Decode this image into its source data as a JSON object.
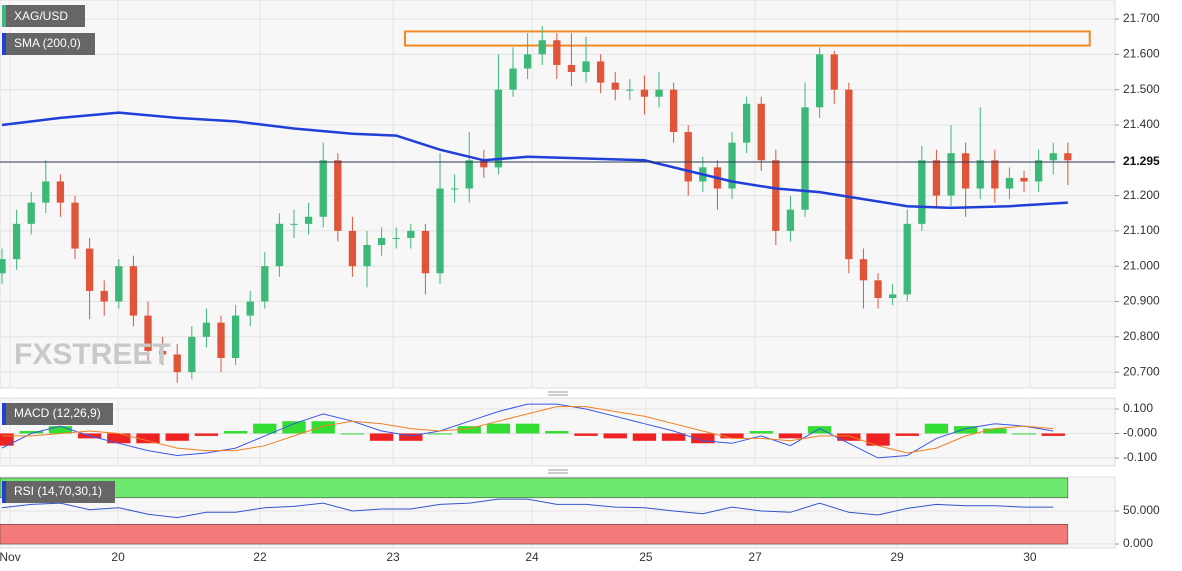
{
  "chart_data": {
    "type": "candlestick",
    "instrument": "XAG/USD",
    "x": [
      0,
      1,
      2,
      3,
      4,
      5,
      6,
      7,
      8,
      9,
      10,
      11,
      12,
      13,
      14,
      15,
      16,
      17,
      18,
      19,
      20,
      21,
      22,
      23,
      24,
      25,
      26,
      27,
      28,
      29,
      30,
      31,
      32,
      33,
      34,
      35,
      36,
      37,
      38,
      39,
      40,
      41,
      42,
      43,
      44,
      45,
      46,
      47,
      48,
      49,
      50,
      51,
      52,
      53,
      54,
      55,
      56,
      57,
      58,
      59,
      60,
      61,
      62,
      63,
      64,
      65,
      66,
      67,
      68,
      69,
      70,
      71,
      72,
      73
    ],
    "open": [
      20.98,
      21.02,
      21.12,
      21.18,
      21.24,
      21.18,
      21.05,
      20.93,
      20.9,
      21.0,
      20.86,
      20.76,
      20.75,
      20.7,
      20.8,
      20.84,
      20.74,
      20.86,
      20.9,
      21.0,
      21.12,
      21.12,
      21.14,
      21.3,
      21.1,
      21.0,
      21.06,
      21.08,
      21.08,
      21.1,
      20.98,
      21.22,
      21.22,
      21.3,
      21.28,
      21.5,
      21.56,
      21.6,
      21.64,
      21.57,
      21.55,
      21.58,
      21.52,
      21.5,
      21.5,
      21.48,
      21.5,
      21.38,
      21.24,
      21.28,
      21.22,
      21.35,
      21.46,
      21.3,
      21.1,
      21.16,
      21.45,
      21.6,
      21.5,
      21.02,
      20.96,
      20.91,
      20.92,
      21.12,
      21.3,
      21.2,
      21.32,
      21.22,
      21.3,
      21.22,
      21.25,
      21.24,
      21.3,
      21.32
    ],
    "high": [
      21.05,
      21.16,
      21.21,
      21.3,
      21.26,
      21.2,
      21.08,
      20.96,
      21.02,
      21.03,
      20.9,
      20.8,
      20.78,
      20.83,
      20.88,
      20.86,
      20.89,
      20.93,
      21.04,
      21.15,
      21.16,
      21.18,
      21.35,
      21.32,
      21.14,
      21.1,
      21.11,
      21.11,
      21.12,
      21.12,
      21.32,
      21.26,
      21.38,
      21.33,
      21.6,
      21.62,
      21.66,
      21.68,
      21.66,
      21.66,
      21.65,
      21.6,
      21.55,
      21.53,
      21.54,
      21.55,
      21.52,
      21.4,
      21.31,
      21.3,
      21.38,
      21.48,
      21.48,
      21.33,
      21.2,
      21.52,
      21.62,
      21.61,
      21.52,
      21.05,
      20.98,
      20.95,
      21.16,
      21.34,
      21.33,
      21.4,
      21.35,
      21.45,
      21.33,
      21.28,
      21.27,
      21.33,
      21.35,
      21.35
    ],
    "low": [
      20.95,
      20.99,
      21.09,
      21.15,
      21.14,
      21.02,
      20.85,
      20.86,
      20.88,
      20.83,
      20.73,
      20.72,
      20.67,
      20.68,
      20.77,
      20.7,
      20.72,
      20.83,
      20.88,
      20.97,
      21.08,
      21.09,
      21.11,
      21.07,
      20.97,
      20.94,
      21.03,
      21.05,
      21.05,
      20.92,
      20.95,
      21.18,
      21.18,
      21.25,
      21.26,
      21.48,
      21.53,
      21.57,
      21.53,
      21.51,
      21.52,
      21.49,
      21.47,
      21.47,
      21.43,
      21.45,
      21.35,
      21.2,
      21.21,
      21.16,
      21.19,
      21.32,
      21.27,
      21.06,
      21.07,
      21.14,
      21.42,
      21.46,
      20.98,
      20.88,
      20.88,
      20.89,
      20.9,
      21.1,
      21.17,
      21.17,
      21.14,
      21.19,
      21.18,
      21.19,
      21.21,
      21.21,
      21.26,
      21.23
    ],
    "close": [
      21.02,
      21.12,
      21.18,
      21.24,
      21.18,
      21.05,
      20.93,
      20.9,
      21.0,
      20.86,
      20.76,
      20.75,
      20.7,
      20.8,
      20.84,
      20.74,
      20.86,
      20.9,
      21.0,
      21.12,
      21.12,
      21.14,
      21.3,
      21.1,
      21.0,
      21.06,
      21.08,
      21.08,
      21.1,
      20.98,
      21.22,
      21.22,
      21.3,
      21.28,
      21.5,
      21.56,
      21.6,
      21.64,
      21.57,
      21.55,
      21.58,
      21.52,
      21.5,
      21.5,
      21.48,
      21.5,
      21.38,
      21.24,
      21.28,
      21.22,
      21.35,
      21.46,
      21.3,
      21.1,
      21.16,
      21.45,
      21.6,
      21.5,
      21.02,
      20.96,
      20.91,
      20.92,
      21.12,
      21.3,
      21.2,
      21.32,
      21.22,
      21.3,
      21.22,
      21.25,
      21.24,
      21.3,
      21.32,
      21.3
    ],
    "up_color": "#3cb878",
    "down_color": "#e0553a",
    "xlim": [
      -0.137,
      76.23
    ],
    "xticks": [
      {
        "value": 0.55,
        "label": "Nov"
      },
      {
        "value": 7.95,
        "label": "20"
      },
      {
        "value": 17.67,
        "label": "22"
      },
      {
        "value": 26.78,
        "label": "23"
      },
      {
        "value": 36.3,
        "label": "24"
      },
      {
        "value": 44.1,
        "label": "25"
      },
      {
        "value": 51.58,
        "label": "27"
      },
      {
        "value": 61.3,
        "label": "29"
      },
      {
        "value": 70.4,
        "label": "30"
      }
    ],
    "ylim": [
      20.655,
      21.754
    ],
    "yticks": [
      {
        "value": 21.7,
        "label": "21.700"
      },
      {
        "value": 21.6,
        "label": "21.600"
      },
      {
        "value": 21.5,
        "label": "21.500"
      },
      {
        "value": 21.4,
        "label": "21.400"
      },
      {
        "value": 21.2,
        "label": "21.200"
      },
      {
        "value": 21.1,
        "label": "21.100"
      },
      {
        "value": 21.0,
        "label": "21.000"
      },
      {
        "value": 20.9,
        "label": "20.900"
      },
      {
        "value": 20.8,
        "label": "20.800"
      },
      {
        "value": 20.7,
        "label": "20.700"
      }
    ],
    "grid": true,
    "last_price": 21.295,
    "sma": {
      "label": "SMA (200,0)",
      "color": "#1f3fd8",
      "x": [
        0,
        4,
        8,
        12,
        16,
        20,
        24,
        27,
        30,
        33,
        36,
        40,
        44,
        47,
        50,
        53,
        56,
        59,
        62,
        65,
        69,
        73
      ],
      "values": [
        21.4,
        21.42,
        21.435,
        21.42,
        21.41,
        21.39,
        21.375,
        21.37,
        21.33,
        21.3,
        21.31,
        21.305,
        21.3,
        21.27,
        21.24,
        21.22,
        21.21,
        21.19,
        21.17,
        21.165,
        21.17,
        21.18
      ]
    },
    "zone": {
      "color": "#f08a24",
      "x": [
        27.6,
        74.5
      ],
      "y": [
        21.625,
        21.665
      ]
    },
    "watermark": "FXSTREET",
    "macd": {
      "label": "MACD (12,26,9)",
      "x": [
        0,
        2,
        4,
        6,
        8,
        10,
        12,
        14,
        16,
        18,
        20,
        22,
        24,
        26,
        28,
        30,
        32,
        34,
        36,
        38,
        40,
        42,
        44,
        46,
        48,
        50,
        52,
        54,
        56,
        58,
        60,
        62,
        64,
        66,
        68,
        70,
        72
      ],
      "macd": {
        "color": "#3a57e8",
        "values": [
          -0.06,
          0.0,
          0.03,
          -0.01,
          -0.04,
          -0.07,
          -0.09,
          -0.08,
          -0.06,
          -0.01,
          0.04,
          0.08,
          0.05,
          0.01,
          -0.01,
          0.01,
          0.05,
          0.09,
          0.12,
          0.12,
          0.1,
          0.07,
          0.04,
          0.01,
          -0.03,
          -0.04,
          -0.01,
          -0.05,
          0.02,
          -0.04,
          -0.1,
          -0.09,
          -0.02,
          0.02,
          0.04,
          0.03,
          0.01
        ]
      },
      "signal": {
        "color": "#f08020",
        "values": [
          -0.01,
          -0.01,
          0.0,
          0.01,
          0.0,
          -0.03,
          -0.06,
          -0.07,
          -0.07,
          -0.05,
          -0.01,
          0.03,
          0.05,
          0.04,
          0.02,
          0.01,
          0.02,
          0.05,
          0.08,
          0.11,
          0.11,
          0.09,
          0.07,
          0.04,
          0.01,
          -0.02,
          -0.02,
          -0.03,
          -0.01,
          -0.01,
          -0.05,
          -0.08,
          -0.06,
          -0.01,
          0.02,
          0.03,
          0.02
        ]
      },
      "histogram": {
        "up_color": "#33dd33",
        "down_color": "#ee2222",
        "values": [
          -0.05,
          0.01,
          0.03,
          -0.02,
          -0.04,
          -0.04,
          -0.03,
          -0.01,
          0.01,
          0.04,
          0.05,
          0.05,
          0.0,
          -0.03,
          -0.03,
          0.0,
          0.03,
          0.04,
          0.04,
          0.01,
          -0.01,
          -0.02,
          -0.03,
          -0.03,
          -0.04,
          -0.02,
          0.01,
          -0.02,
          0.03,
          -0.03,
          -0.05,
          -0.01,
          0.04,
          0.03,
          0.02,
          0.0,
          -0.01
        ]
      },
      "ylim": [
        -0.133,
        0.145
      ],
      "yticks": [
        {
          "value": 0.1,
          "label": "0.100"
        },
        {
          "value": 0,
          "label": "-0.000"
        },
        {
          "value": -0.1,
          "label": "-0.100"
        }
      ]
    },
    "rsi": {
      "label": "RSI (14,70,30,1)",
      "color": "#3355cc",
      "x": [
        0,
        2,
        4,
        6,
        8,
        10,
        12,
        14,
        16,
        18,
        20,
        22,
        24,
        26,
        28,
        30,
        32,
        34,
        36,
        38,
        40,
        42,
        44,
        46,
        48,
        50,
        52,
        54,
        56,
        58,
        60,
        62,
        64,
        66,
        68,
        70,
        72
      ],
      "values": [
        55,
        60,
        62,
        52,
        55,
        45,
        40,
        48,
        48,
        55,
        57,
        62,
        50,
        53,
        53,
        60,
        62,
        68,
        68,
        60,
        60,
        56,
        55,
        50,
        46,
        56,
        50,
        48,
        62,
        48,
        44,
        54,
        60,
        58,
        58,
        56,
        56
      ],
      "overbought": 70,
      "oversold": 30,
      "overbought_color": "#6ee86e",
      "oversold_color": "#f47a7a",
      "ylim": [
        -6,
        101.5
      ],
      "yticks": [
        {
          "value": 50,
          "label": "50.000"
        },
        {
          "value": 0,
          "label": "0.000"
        }
      ]
    }
  }
}
